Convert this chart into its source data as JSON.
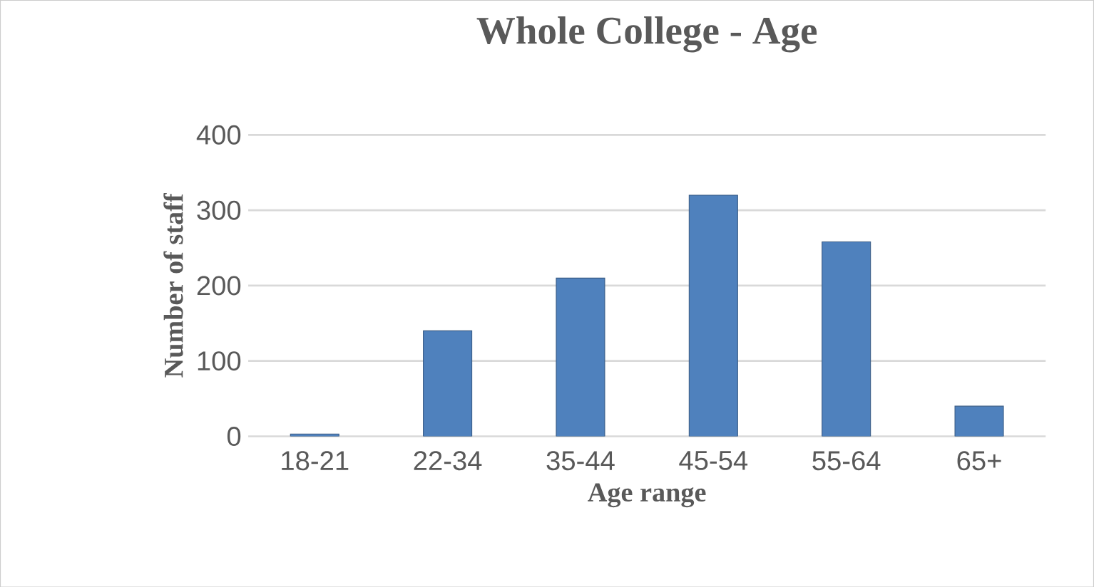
{
  "chart_data": {
    "type": "bar",
    "title": "Whole College - Age",
    "xlabel": "Age range",
    "ylabel": "Number of staff",
    "categories": [
      "18-21",
      "22-34",
      "35-44",
      "45-54",
      "55-64",
      "65+"
    ],
    "values": [
      3,
      140,
      210,
      320,
      258,
      40
    ],
    "color": "#4f81bd",
    "ylim": [
      0,
      400
    ],
    "yticks": [
      0,
      100,
      200,
      300,
      400
    ],
    "grid": "y"
  }
}
